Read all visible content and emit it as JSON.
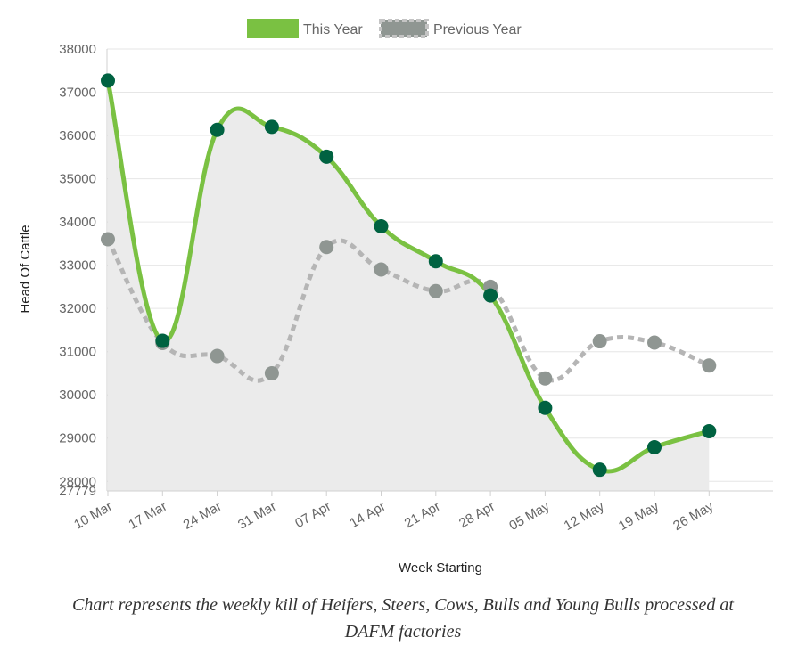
{
  "chart_data": {
    "type": "line",
    "categories": [
      "10 Mar",
      "17 Mar",
      "24 Mar",
      "31 Mar",
      "07 Apr",
      "14 Apr",
      "21 Apr",
      "28 Apr",
      "05 May",
      "12 May",
      "19 May",
      "26 May"
    ],
    "series": [
      {
        "name": "This Year",
        "style": "solid",
        "color": "#7ac142",
        "point_color": "#006241",
        "fill": true,
        "fill_color": "#ebebeb",
        "values": [
          37270,
          31250,
          36130,
          36200,
          35510,
          33900,
          33090,
          32300,
          29700,
          28270,
          28790,
          29160
        ]
      },
      {
        "name": "Previous Year",
        "style": "dashed",
        "color": "#b5b5b5",
        "point_color": "#8f9692",
        "fill": false,
        "values": [
          33600,
          31200,
          30900,
          30500,
          33420,
          32900,
          32400,
          32500,
          30380,
          31240,
          31210,
          30680
        ]
      }
    ],
    "xlabel": "Week Starting",
    "ylabel": "Head Of Cattle",
    "ylim": [
      27779,
      38000
    ],
    "yticks": [
      27779,
      28000,
      29000,
      30000,
      31000,
      32000,
      33000,
      34000,
      35000,
      36000,
      37000,
      38000
    ],
    "grid": true,
    "legend": "top-center"
  },
  "caption": {
    "line1": "Chart represents the weekly kill of Heifers, Steers, Cows, Bulls and Young Bulls processed at",
    "line2": "DAFM factories"
  }
}
